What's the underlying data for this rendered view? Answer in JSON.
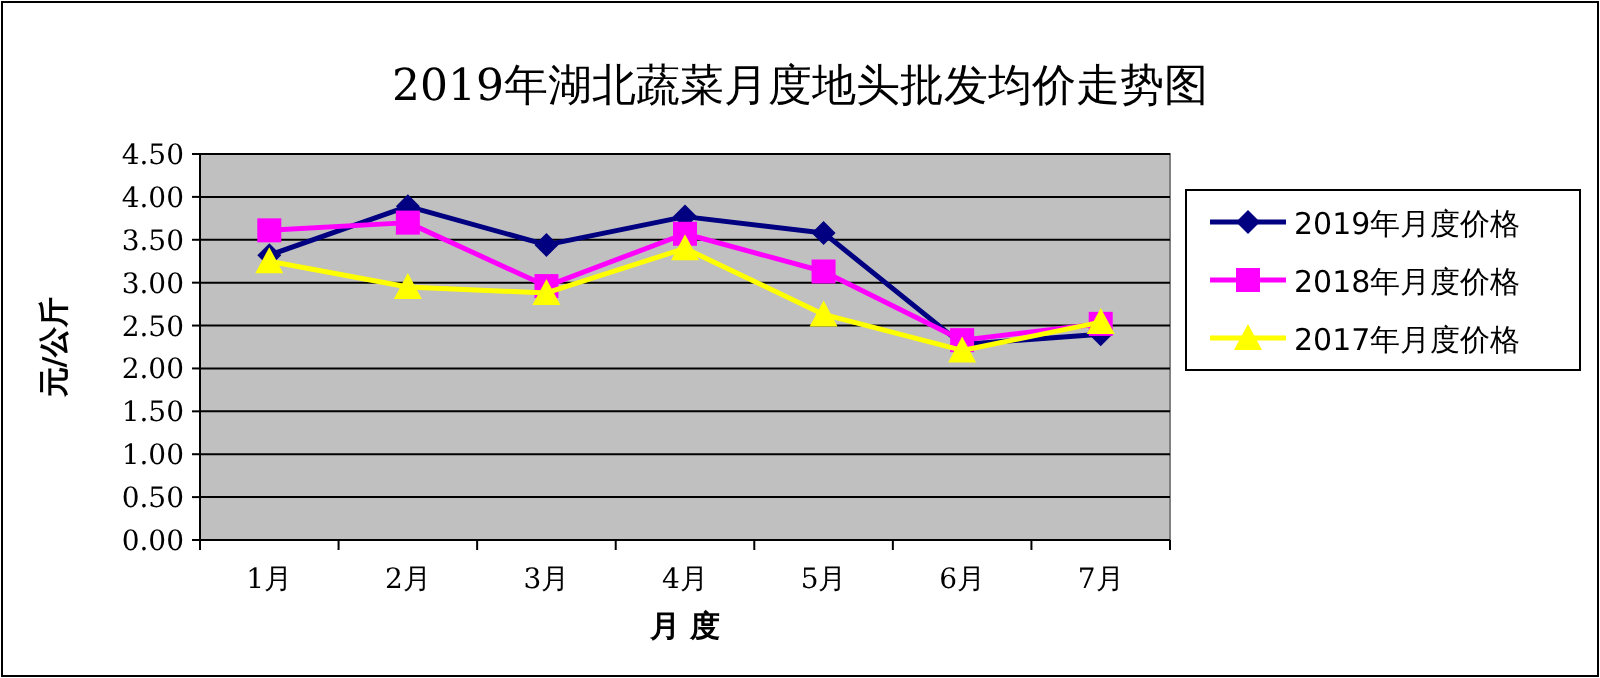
{
  "chart_data": {
    "type": "line",
    "title": "2019年湖北蔬菜月度地头批发均价走势图",
    "xlabel": "月 度",
    "ylabel": "元/公斤",
    "categories": [
      "1月",
      "2月",
      "3月",
      "4月",
      "5月",
      "6月",
      "7月"
    ],
    "series": [
      {
        "name": "2019年月度价格",
        "color": "#000080",
        "marker": "diamond",
        "values": [
          3.32,
          3.89,
          3.44,
          3.77,
          3.58,
          2.28,
          2.4
        ]
      },
      {
        "name": "2018年月度价格",
        "color": "#ff00ff",
        "marker": "square",
        "values": [
          3.61,
          3.7,
          2.96,
          3.57,
          3.13,
          2.33,
          2.52
        ]
      },
      {
        "name": "2017年月度价格",
        "color": "#ffff00",
        "marker": "triangle",
        "values": [
          3.25,
          2.95,
          2.88,
          3.4,
          2.63,
          2.21,
          2.54
        ]
      }
    ],
    "ylim": [
      0,
      4.5
    ],
    "yticks": [
      {
        "value": 0,
        "label": "0.00"
      },
      {
        "value": 0.5,
        "label": "0.50"
      },
      {
        "value": 1,
        "label": "1.00"
      },
      {
        "value": 1.5,
        "label": "1.50"
      },
      {
        "value": 2,
        "label": "2.00"
      },
      {
        "value": 2.5,
        "label": "2.50"
      },
      {
        "value": 3,
        "label": "3.00"
      },
      {
        "value": 3.5,
        "label": "3.50"
      },
      {
        "value": 4,
        "label": "4.00"
      },
      {
        "value": 4.5,
        "label": "4.50"
      }
    ],
    "grid": "y",
    "legend": "right",
    "line_style": "solid"
  }
}
